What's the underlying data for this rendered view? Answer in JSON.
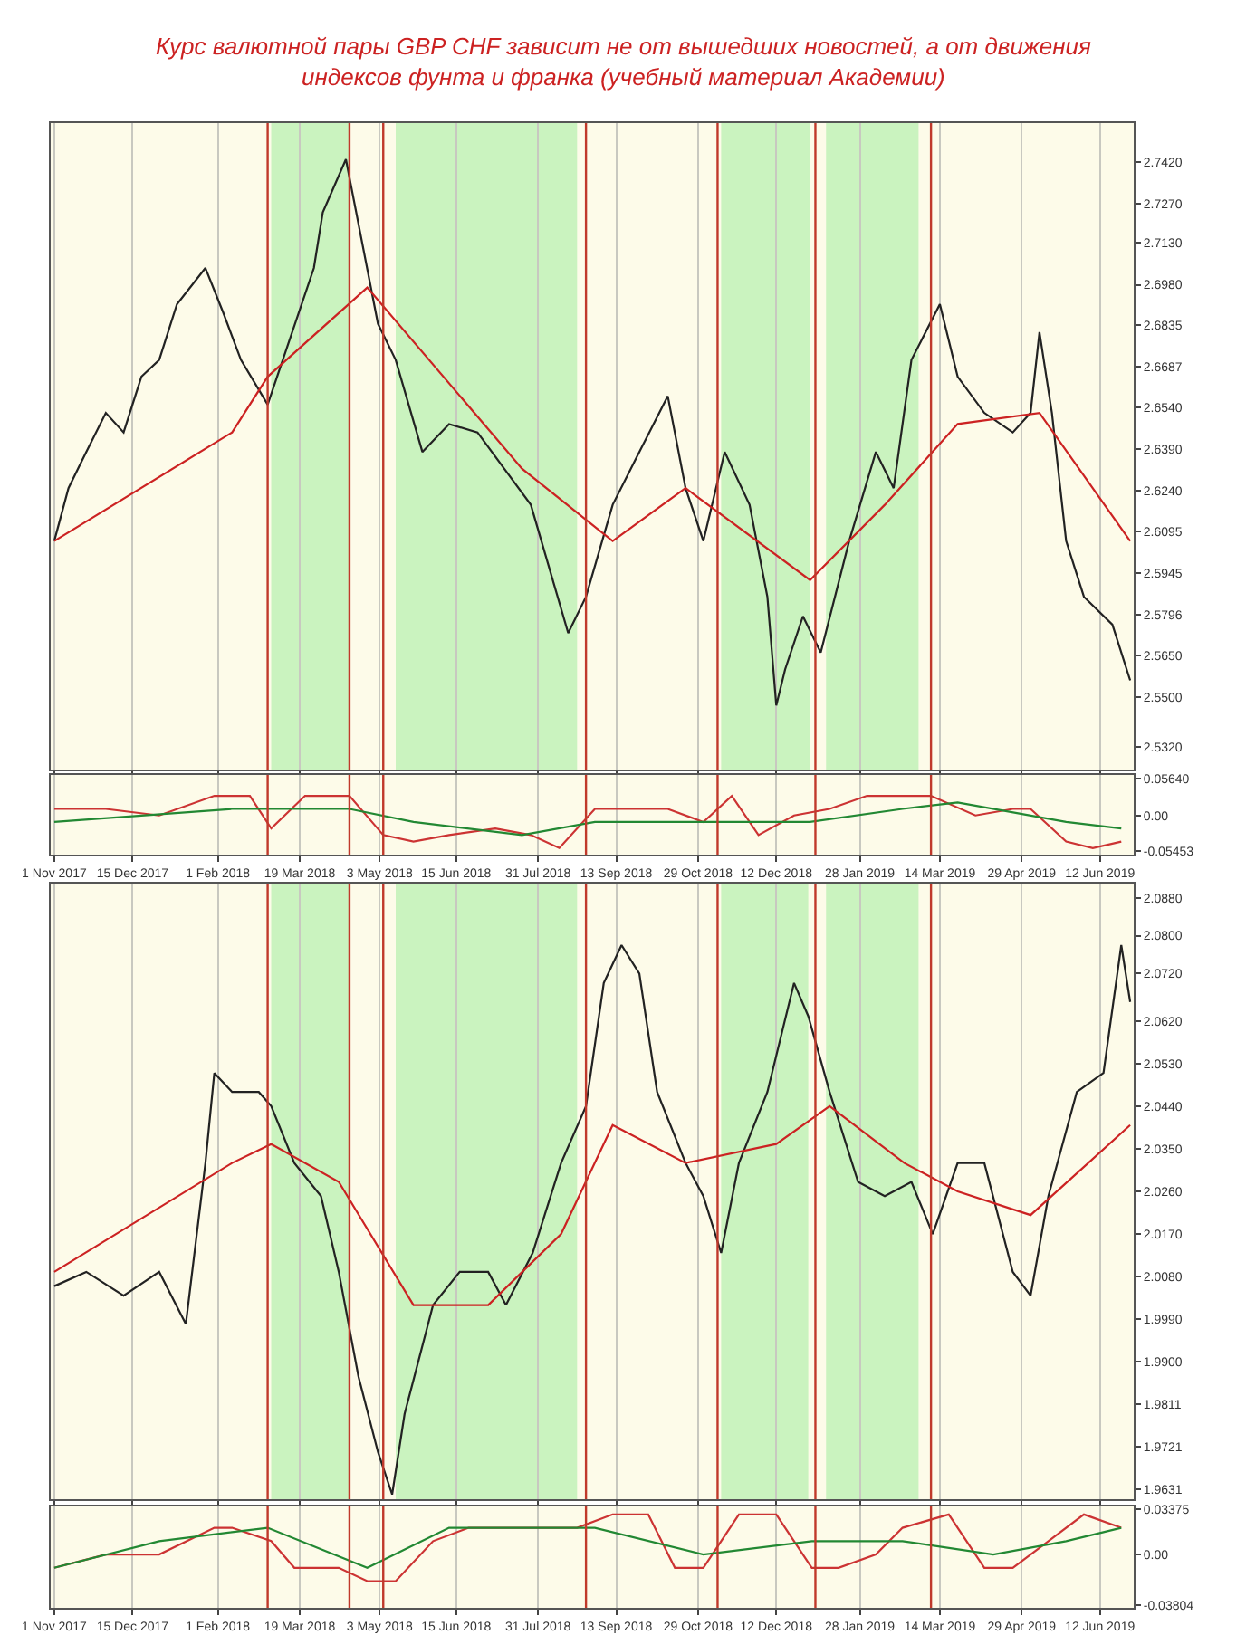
{
  "chart_data": [
    {
      "type": "line",
      "title": "Курс валютной пары GBP CHF зависит не от вышедших новостей, а от движения индексов фунта и франка (учебный материал Академии)",
      "tick_labels": "y",
      "grid": "x",
      "xlim": [
        "2017-10-30",
        "2019-07-01"
      ],
      "xticks": [
        {
          "value": "2017-11-01",
          "label": null
        },
        {
          "value": "2017-12-15",
          "label": null
        },
        {
          "value": "2018-02-01",
          "label": null
        },
        {
          "value": "2018-03-19",
          "label": null
        },
        {
          "value": "2018-05-03",
          "label": null
        },
        {
          "value": "2018-06-15",
          "label": null
        },
        {
          "value": "2018-07-31",
          "label": null
        },
        {
          "value": "2018-09-13",
          "label": null
        },
        {
          "value": "2018-10-29",
          "label": null
        },
        {
          "value": "2018-12-12",
          "label": null
        },
        {
          "value": "2019-01-28",
          "label": null
        },
        {
          "value": "2019-03-14",
          "label": null
        },
        {
          "value": "2019-04-29",
          "label": null
        },
        {
          "value": "2019-06-12",
          "label": null
        }
      ],
      "ylim": [
        2.524,
        2.756
      ],
      "yticks": [
        {
          "value": 2.742,
          "label": "2.7420"
        },
        {
          "value": 2.727,
          "label": "2.7270"
        },
        {
          "value": 2.713,
          "label": "2.7130"
        },
        {
          "value": 2.698,
          "label": "2.6980"
        },
        {
          "value": 2.6835,
          "label": "2.6835"
        },
        {
          "value": 2.6687,
          "label": "2.6687"
        },
        {
          "value": 2.654,
          "label": "2.6540"
        },
        {
          "value": 2.639,
          "label": "2.6390"
        },
        {
          "value": 2.624,
          "label": "2.6240"
        },
        {
          "value": 2.6095,
          "label": "2.6095"
        },
        {
          "value": 2.5945,
          "label": "2.5945"
        },
        {
          "value": 2.5796,
          "label": "2.5796"
        },
        {
          "value": 2.565,
          "label": "2.5650"
        },
        {
          "value": 2.55,
          "label": "2.5500"
        },
        {
          "value": 2.532,
          "label": "2.5320"
        }
      ],
      "bands": [
        {
          "axis": "x",
          "from": "2018-03-03",
          "to": "2018-04-16",
          "label": null,
          "color": "#b8f0b0"
        },
        {
          "axis": "x",
          "from": "2018-05-12",
          "to": "2018-08-22",
          "label": null,
          "color": "#b8f0b0"
        },
        {
          "axis": "x",
          "from": "2018-11-11",
          "to": "2018-12-31",
          "label": null,
          "color": "#b8f0b0"
        },
        {
          "axis": "x",
          "from": "2019-01-09",
          "to": "2019-03-02",
          "label": null,
          "color": "#b8f0b0"
        }
      ],
      "ref_lines": [
        {
          "axis": "x",
          "value": "2018-03-01",
          "label": null,
          "color": "#c0392b"
        },
        {
          "axis": "x",
          "value": "2018-04-16",
          "label": null,
          "color": "#c0392b"
        },
        {
          "axis": "x",
          "value": "2018-05-05",
          "label": null,
          "color": "#c0392b"
        },
        {
          "axis": "x",
          "value": "2018-08-27",
          "label": null,
          "color": "#c0392b"
        },
        {
          "axis": "x",
          "value": "2018-11-09",
          "label": null,
          "color": "#c0392b"
        },
        {
          "axis": "x",
          "value": "2019-01-03",
          "label": null,
          "color": "#c0392b"
        },
        {
          "axis": "x",
          "value": "2019-03-09",
          "label": null,
          "color": "#c0392b"
        }
      ],
      "series": [
        {
          "color": "#222222",
          "x": [
            "2017-11-01",
            "2017-11-09",
            "2017-11-19",
            "2017-11-30",
            "2017-12-10",
            "2017-12-20",
            "2017-12-30",
            "2018-01-09",
            "2018-01-25",
            "2018-02-04",
            "2018-02-14",
            "2018-03-01",
            "2018-03-27",
            "2018-04-01",
            "2018-04-14",
            "2018-05-02",
            "2018-05-12",
            "2018-05-27",
            "2018-06-11",
            "2018-06-27",
            "2018-07-12",
            "2018-07-27",
            "2018-08-17",
            "2018-08-27",
            "2018-09-11",
            "2018-09-26",
            "2018-10-12",
            "2018-10-22",
            "2018-11-01",
            "2018-11-13",
            "2018-11-27",
            "2018-12-07",
            "2018-12-12",
            "2018-12-17",
            "2018-12-27",
            "2019-01-06",
            "2019-01-22",
            "2019-02-06",
            "2019-02-16",
            "2019-02-26",
            "2019-03-14",
            "2019-03-24",
            "2019-04-08",
            "2019-04-24",
            "2019-05-04",
            "2019-05-09",
            "2019-05-16",
            "2019-05-24",
            "2019-06-03",
            "2019-06-19",
            "2019-06-29"
          ],
          "values": [
            2.606,
            2.625,
            2.638,
            2.652,
            2.645,
            2.665,
            2.671,
            2.691,
            2.704,
            2.688,
            2.671,
            2.655,
            2.704,
            2.724,
            2.743,
            2.684,
            2.671,
            2.638,
            2.648,
            2.645,
            2.632,
            2.619,
            2.573,
            2.586,
            2.619,
            2.638,
            2.658,
            2.625,
            2.606,
            2.638,
            2.619,
            2.586,
            2.547,
            2.56,
            2.579,
            2.566,
            2.606,
            2.638,
            2.625,
            2.671,
            2.691,
            2.665,
            2.652,
            2.645,
            2.652,
            2.681,
            2.652,
            2.606,
            2.586,
            2.576,
            2.556
          ]
        },
        {
          "color": "#cc2222",
          "x": [
            "2017-11-01",
            "2018-02-09",
            "2018-03-01",
            "2018-04-26",
            "2018-07-22",
            "2018-09-11",
            "2018-10-22",
            "2018-12-31",
            "2019-02-11",
            "2019-03-24",
            "2019-05-09",
            "2019-06-29"
          ],
          "values": [
            2.606,
            2.645,
            2.665,
            2.697,
            2.632,
            2.606,
            2.625,
            2.592,
            2.619,
            2.648,
            2.652,
            2.606
          ]
        }
      ]
    },
    {
      "type": "line",
      "grid": "x",
      "xlim": [
        "2017-10-30",
        "2019-07-01"
      ],
      "xticks": [
        {
          "value": "2017-11-01",
          "label": "1 Nov 2017"
        },
        {
          "value": "2017-12-15",
          "label": "15 Dec 2017"
        },
        {
          "value": "2018-02-01",
          "label": "1 Feb 2018"
        },
        {
          "value": "2018-03-19",
          "label": "19 Mar 2018"
        },
        {
          "value": "2018-05-03",
          "label": "3 May 2018"
        },
        {
          "value": "2018-06-15",
          "label": "15 Jun 2018"
        },
        {
          "value": "2018-07-31",
          "label": "31 Jul 2018"
        },
        {
          "value": "2018-09-13",
          "label": "13 Sep 2018"
        },
        {
          "value": "2018-10-29",
          "label": "29 Oct 2018"
        },
        {
          "value": "2018-12-12",
          "label": "12 Dec 2018"
        },
        {
          "value": "2019-01-28",
          "label": "28 Jan 2019"
        },
        {
          "value": "2019-03-14",
          "label": "14 Mar 2019"
        },
        {
          "value": "2019-04-29",
          "label": "29 Apr 2019"
        },
        {
          "value": "2019-06-12",
          "label": "12 Jun 2019"
        }
      ],
      "ylim": [
        -0.06,
        0.062
      ],
      "yticks": [
        {
          "value": 0.0564,
          "label": "0.05640"
        },
        {
          "value": 0,
          "label": "0.00"
        },
        {
          "value": -0.05453,
          "label": "-0.05453"
        }
      ],
      "ref_lines": [
        {
          "axis": "x",
          "value": "2018-03-01",
          "label": null,
          "color": "#c0392b"
        },
        {
          "axis": "x",
          "value": "2018-04-16",
          "label": null,
          "color": "#c0392b"
        },
        {
          "axis": "x",
          "value": "2018-05-05",
          "label": null,
          "color": "#c0392b"
        },
        {
          "axis": "x",
          "value": "2018-08-27",
          "label": null,
          "color": "#c0392b"
        },
        {
          "axis": "x",
          "value": "2018-11-09",
          "label": null,
          "color": "#c0392b"
        },
        {
          "axis": "x",
          "value": "2019-01-03",
          "label": null,
          "color": "#c0392b"
        },
        {
          "axis": "x",
          "value": "2019-03-09",
          "label": null,
          "color": "#c0392b"
        }
      ],
      "series": [
        {
          "color": "#cc3333",
          "x": [
            "2017-11-01",
            "2017-11-30",
            "2017-12-30",
            "2018-01-30",
            "2018-02-19",
            "2018-03-03",
            "2018-03-22",
            "2018-04-16",
            "2018-05-05",
            "2018-05-22",
            "2018-06-11",
            "2018-07-07",
            "2018-07-27",
            "2018-08-12",
            "2018-09-01",
            "2018-09-21",
            "2018-10-12",
            "2018-11-01",
            "2018-11-17",
            "2018-12-02",
            "2018-12-22",
            "2019-01-11",
            "2019-02-01",
            "2019-02-21",
            "2019-03-09",
            "2019-04-03",
            "2019-04-24",
            "2019-05-04",
            "2019-05-24",
            "2019-06-08",
            "2019-06-24"
          ],
          "values": [
            0.01,
            0.01,
            0,
            0.03,
            0.03,
            -0.02,
            0.03,
            0.03,
            -0.03,
            -0.04,
            -0.03,
            -0.02,
            -0.03,
            -0.05,
            0.01,
            0.01,
            0.01,
            -0.01,
            0.03,
            -0.03,
            0,
            0.01,
            0.03,
            0.03,
            0.03,
            0,
            0.01,
            0.01,
            -0.04,
            -0.05,
            -0.04
          ]
        },
        {
          "color": "#228833",
          "x": [
            "2017-11-01",
            "2018-02-09",
            "2018-04-16",
            "2018-05-22",
            "2018-07-22",
            "2018-09-01",
            "2018-11-01",
            "2018-12-31",
            "2019-02-21",
            "2019-03-24",
            "2019-05-24",
            "2019-06-24"
          ],
          "values": [
            -0.01,
            0.01,
            0.01,
            -0.01,
            -0.03,
            -0.01,
            -0.01,
            -0.01,
            0.01,
            0.02,
            -0.01,
            -0.02
          ]
        }
      ]
    },
    {
      "type": "line",
      "tick_labels": "y",
      "grid": "x",
      "xlim": [
        "2017-10-30",
        "2019-07-01"
      ],
      "xticks": [
        {
          "value": "2017-11-01",
          "label": null
        },
        {
          "value": "2017-12-15",
          "label": null
        },
        {
          "value": "2018-02-01",
          "label": null
        },
        {
          "value": "2018-03-19",
          "label": null
        },
        {
          "value": "2018-05-03",
          "label": null
        },
        {
          "value": "2018-06-15",
          "label": null
        },
        {
          "value": "2018-07-31",
          "label": null
        },
        {
          "value": "2018-09-13",
          "label": null
        },
        {
          "value": "2018-10-29",
          "label": null
        },
        {
          "value": "2018-12-12",
          "label": null
        },
        {
          "value": "2019-01-28",
          "label": null
        },
        {
          "value": "2019-03-14",
          "label": null
        },
        {
          "value": "2019-04-29",
          "label": null
        },
        {
          "value": "2019-06-12",
          "label": null
        }
      ],
      "ylim": [
        1.961,
        2.091
      ],
      "yticks": [
        {
          "value": 2.088,
          "label": "2.0880"
        },
        {
          "value": 2.08,
          "label": "2.0800"
        },
        {
          "value": 2.072,
          "label": "2.0720"
        },
        {
          "value": 2.062,
          "label": "2.0620"
        },
        {
          "value": 2.053,
          "label": "2.0530"
        },
        {
          "value": 2.044,
          "label": "2.0440"
        },
        {
          "value": 2.035,
          "label": "2.0350"
        },
        {
          "value": 2.026,
          "label": "2.0260"
        },
        {
          "value": 2.017,
          "label": "2.0170"
        },
        {
          "value": 2.008,
          "label": "2.0080"
        },
        {
          "value": 1.999,
          "label": "1.9990"
        },
        {
          "value": 1.99,
          "label": "1.9900"
        },
        {
          "value": 1.9811,
          "label": "1.9811"
        },
        {
          "value": 1.9721,
          "label": "1.9721"
        },
        {
          "value": 1.9631,
          "label": "1.9631"
        }
      ],
      "bands": [
        {
          "axis": "x",
          "from": "2018-03-03",
          "to": "2018-04-16",
          "label": null,
          "color": "#b8f0b0"
        },
        {
          "axis": "x",
          "from": "2018-05-12",
          "to": "2018-08-22",
          "label": null,
          "color": "#b8f0b0"
        },
        {
          "axis": "x",
          "from": "2018-11-11",
          "to": "2018-12-30",
          "label": null,
          "color": "#b8f0b0"
        },
        {
          "axis": "x",
          "from": "2019-01-09",
          "to": "2019-03-02",
          "label": null,
          "color": "#b8f0b0"
        }
      ],
      "ref_lines": [
        {
          "axis": "x",
          "value": "2018-03-01",
          "label": null,
          "color": "#c0392b"
        },
        {
          "axis": "x",
          "value": "2018-04-16",
          "label": null,
          "color": "#c0392b"
        },
        {
          "axis": "x",
          "value": "2018-05-05",
          "label": null,
          "color": "#c0392b"
        },
        {
          "axis": "x",
          "value": "2018-08-27",
          "label": null,
          "color": "#c0392b"
        },
        {
          "axis": "x",
          "value": "2018-11-09",
          "label": null,
          "color": "#c0392b"
        },
        {
          "axis": "x",
          "value": "2019-01-03",
          "label": null,
          "color": "#c0392b"
        },
        {
          "axis": "x",
          "value": "2019-03-09",
          "label": null,
          "color": "#c0392b"
        }
      ],
      "series": [
        {
          "color": "#222222",
          "x": [
            "2017-11-01",
            "2017-11-19",
            "2017-12-10",
            "2017-12-30",
            "2018-01-14",
            "2018-01-25",
            "2018-01-30",
            "2018-02-09",
            "2018-02-24",
            "2018-03-03",
            "2018-03-16",
            "2018-03-31",
            "2018-04-10",
            "2018-04-21",
            "2018-05-02",
            "2018-05-10",
            "2018-05-17",
            "2018-06-02",
            "2018-06-17",
            "2018-07-03",
            "2018-07-13",
            "2018-07-28",
            "2018-08-13",
            "2018-08-27",
            "2018-09-06",
            "2018-09-16",
            "2018-09-26",
            "2018-10-06",
            "2018-10-22",
            "2018-11-01",
            "2018-11-11",
            "2018-11-21",
            "2018-12-07",
            "2018-12-22",
            "2018-12-30",
            "2019-01-11",
            "2019-01-27",
            "2019-02-11",
            "2019-02-26",
            "2019-03-10",
            "2019-03-24",
            "2019-04-08",
            "2019-04-24",
            "2019-05-04",
            "2019-05-14",
            "2019-05-30",
            "2019-06-14",
            "2019-06-24",
            "2019-06-29"
          ],
          "values": [
            2.006,
            2.009,
            2.004,
            2.009,
            1.998,
            2.032,
            2.051,
            2.047,
            2.047,
            2.044,
            2.032,
            2.025,
            2.009,
            1.987,
            1.971,
            1.962,
            1.979,
            2.002,
            2.009,
            2.009,
            2.002,
            2.013,
            2.032,
            2.044,
            2.07,
            2.078,
            2.072,
            2.047,
            2.032,
            2.025,
            2.013,
            2.032,
            2.047,
            2.07,
            2.063,
            2.047,
            2.028,
            2.025,
            2.028,
            2.017,
            2.032,
            2.032,
            2.009,
            2.004,
            2.025,
            2.047,
            2.051,
            2.078,
            2.066
          ]
        },
        {
          "color": "#cc2222",
          "x": [
            "2017-11-01",
            "2018-02-09",
            "2018-03-03",
            "2018-04-10",
            "2018-05-22",
            "2018-07-03",
            "2018-08-13",
            "2018-09-11",
            "2018-10-22",
            "2018-12-12",
            "2019-01-11",
            "2019-02-22",
            "2019-03-24",
            "2019-05-04",
            "2019-06-29"
          ],
          "values": [
            2.009,
            2.032,
            2.036,
            2.028,
            2.002,
            2.002,
            2.017,
            2.04,
            2.032,
            2.036,
            2.044,
            2.032,
            2.026,
            2.021,
            2.04
          ]
        }
      ]
    },
    {
      "type": "line",
      "grid": "x",
      "xlim": [
        "2017-10-30",
        "2019-07-01"
      ],
      "xticks": [
        {
          "value": "2017-11-01",
          "label": "1 Nov 2017"
        },
        {
          "value": "2017-12-15",
          "label": "15 Dec 2017"
        },
        {
          "value": "2018-02-01",
          "label": "1 Feb 2018"
        },
        {
          "value": "2018-03-19",
          "label": "19 Mar 2018"
        },
        {
          "value": "2018-05-03",
          "label": "3 May 2018"
        },
        {
          "value": "2018-06-15",
          "label": "15 Jun 2018"
        },
        {
          "value": "2018-07-31",
          "label": "31 Jul 2018"
        },
        {
          "value": "2018-09-13",
          "label": "13 Sep 2018"
        },
        {
          "value": "2018-10-29",
          "label": "29 Oct 2018"
        },
        {
          "value": "2018-12-12",
          "label": "12 Dec 2018"
        },
        {
          "value": "2019-01-28",
          "label": "28 Jan 2019"
        },
        {
          "value": "2019-03-14",
          "label": "14 Mar 2019"
        },
        {
          "value": "2019-04-29",
          "label": "29 Apr 2019"
        },
        {
          "value": "2019-06-12",
          "label": "12 Jun 2019"
        }
      ],
      "ylim": [
        -0.04,
        0.036
      ],
      "yticks": [
        {
          "value": 0.03375,
          "label": "0.03375"
        },
        {
          "value": 0,
          "label": "0.00"
        },
        {
          "value": -0.03804,
          "label": "-0.03804"
        }
      ],
      "ref_lines": [
        {
          "axis": "x",
          "value": "2018-03-01",
          "label": null,
          "color": "#c0392b"
        },
        {
          "axis": "x",
          "value": "2018-04-16",
          "label": null,
          "color": "#c0392b"
        },
        {
          "axis": "x",
          "value": "2018-05-05",
          "label": null,
          "color": "#c0392b"
        },
        {
          "axis": "x",
          "value": "2018-08-27",
          "label": null,
          "color": "#c0392b"
        },
        {
          "axis": "x",
          "value": "2018-11-09",
          "label": null,
          "color": "#c0392b"
        },
        {
          "axis": "x",
          "value": "2019-01-03",
          "label": null,
          "color": "#c0392b"
        },
        {
          "axis": "x",
          "value": "2019-03-09",
          "label": null,
          "color": "#c0392b"
        }
      ],
      "series": [
        {
          "color": "#cc3333",
          "x": [
            "2017-11-01",
            "2017-11-30",
            "2017-12-30",
            "2018-01-30",
            "2018-02-09",
            "2018-03-03",
            "2018-03-16",
            "2018-04-10",
            "2018-04-26",
            "2018-05-12",
            "2018-06-02",
            "2018-06-22",
            "2018-07-13",
            "2018-08-02",
            "2018-08-22",
            "2018-09-11",
            "2018-10-01",
            "2018-10-16",
            "2018-11-01",
            "2018-11-21",
            "2018-12-12",
            "2019-01-01",
            "2019-01-16",
            "2019-02-06",
            "2019-02-21",
            "2019-03-19",
            "2019-04-08",
            "2019-04-24",
            "2019-05-14",
            "2019-06-03",
            "2019-06-24"
          ],
          "values": [
            -0.01,
            0,
            0,
            0.02,
            0.02,
            0.01,
            -0.01,
            -0.01,
            -0.02,
            -0.02,
            0.01,
            0.02,
            0.02,
            0.02,
            0.02,
            0.03,
            0.03,
            -0.01,
            -0.01,
            0.03,
            0.03,
            -0.01,
            -0.01,
            0,
            0.02,
            0.03,
            -0.01,
            -0.01,
            0.01,
            0.03,
            0.02
          ]
        },
        {
          "color": "#228833",
          "x": [
            "2017-11-01",
            "2017-12-30",
            "2018-03-01",
            "2018-04-26",
            "2018-06-11",
            "2018-09-01",
            "2018-11-01",
            "2019-01-01",
            "2019-02-21",
            "2019-04-13",
            "2019-05-24",
            "2019-06-24"
          ],
          "values": [
            -0.01,
            0.01,
            0.02,
            -0.01,
            0.02,
            0.02,
            0,
            0.01,
            0.01,
            0,
            0.01,
            0.02
          ]
        }
      ]
    }
  ]
}
